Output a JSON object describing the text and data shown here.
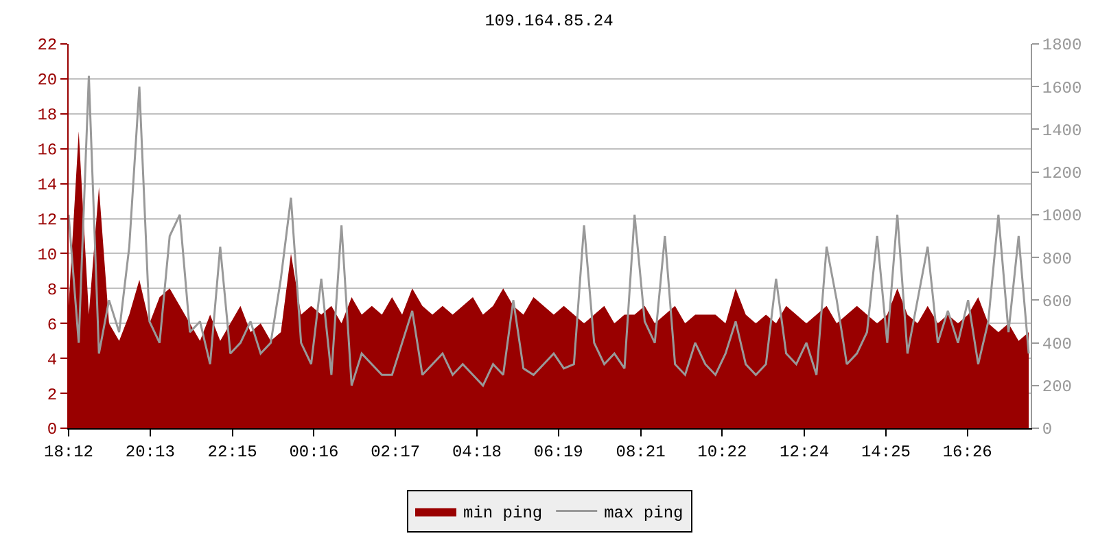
{
  "chart_data": {
    "type": "area",
    "title": "109.164.85.24",
    "x": [
      "--01-01T18:12",
      "--01-01T18:27",
      "--01-01T18:42",
      "--01-01T18:57",
      "--01-01T19:12",
      "--01-01T19:27",
      "--01-01T19:42",
      "--01-01T19:57",
      "--01-01T20:12",
      "--01-01T20:27",
      "--01-01T20:42",
      "--01-01T20:57",
      "--01-01T21:12",
      "--01-01T21:27",
      "--01-01T21:42",
      "--01-01T21:57",
      "--01-01T22:12",
      "--01-01T22:27",
      "--01-01T22:42",
      "--01-01T22:57",
      "--01-01T23:12",
      "--01-01T23:27",
      "--01-01T23:42",
      "--01-01T23:57",
      "--01-02T00:12",
      "--01-02T00:27",
      "--01-02T00:42",
      "--01-02T00:57",
      "--01-02T01:12",
      "--01-02T01:27",
      "--01-02T01:42",
      "--01-02T01:57",
      "--01-02T02:12",
      "--01-02T02:27",
      "--01-02T02:42",
      "--01-02T02:57",
      "--01-02T03:12",
      "--01-02T03:27",
      "--01-02T03:42",
      "--01-02T03:57",
      "--01-02T04:12",
      "--01-02T04:27",
      "--01-02T04:42",
      "--01-02T04:57",
      "--01-02T05:12",
      "--01-02T05:27",
      "--01-02T05:42",
      "--01-02T05:57",
      "--01-02T06:12",
      "--01-02T06:27",
      "--01-02T06:42",
      "--01-02T06:57",
      "--01-02T07:12",
      "--01-02T07:27",
      "--01-02T07:42",
      "--01-02T07:57",
      "--01-02T08:12",
      "--01-02T08:27",
      "--01-02T08:42",
      "--01-02T08:57",
      "--01-02T09:12",
      "--01-02T09:27",
      "--01-02T09:42",
      "--01-02T09:57",
      "--01-02T10:12",
      "--01-02T10:27",
      "--01-02T10:42",
      "--01-02T10:57",
      "--01-02T11:12",
      "--01-02T11:27",
      "--01-02T11:42",
      "--01-02T11:57",
      "--01-02T12:12",
      "--01-02T12:27",
      "--01-02T12:42",
      "--01-02T12:57",
      "--01-02T13:12",
      "--01-02T13:27",
      "--01-02T13:42",
      "--01-02T13:57",
      "--01-02T14:12",
      "--01-02T14:27",
      "--01-02T14:42",
      "--01-02T14:57",
      "--01-02T15:12",
      "--01-02T15:27",
      "--01-02T15:42",
      "--01-02T15:57",
      "--01-02T16:12",
      "--01-02T16:27",
      "--01-02T16:42",
      "--01-02T16:57",
      "--01-02T17:12",
      "--01-02T17:27",
      "--01-02T17:42",
      "--01-02T17:57"
    ],
    "series": [
      {
        "name": "min ping",
        "color": "#990000",
        "values": [
          7,
          17,
          6.5,
          13.8,
          6,
          5,
          6.5,
          8.5,
          6,
          7.5,
          8,
          7,
          6,
          5,
          6.5,
          5,
          6,
          7,
          5.5,
          6,
          5,
          5.5,
          10,
          6.5,
          7,
          6.5,
          7,
          6,
          7.5,
          6.5,
          7,
          6.5,
          7.5,
          6.5,
          8,
          7,
          6.5,
          7,
          6.5,
          7,
          7.5,
          6.5,
          7,
          8,
          7,
          6.5,
          7.5,
          7,
          6.5,
          7,
          6.5,
          6,
          6.5,
          7,
          6,
          6.5,
          6.5,
          7,
          6,
          6.5,
          7,
          6,
          6.5,
          6.5,
          6.5,
          6,
          8,
          6.5,
          6,
          6.5,
          6,
          7,
          6.5,
          6,
          6.5,
          7,
          6,
          6.5,
          7,
          6.5,
          6,
          6.5,
          8,
          6.5,
          6,
          7,
          6,
          6.5,
          6,
          6.5,
          7.5,
          6,
          5.5,
          6,
          5,
          5.5
        ]
      },
      {
        "name": "max ping",
        "type": "line",
        "axis": "y2",
        "color": "#999999",
        "values": [
          1000,
          400,
          1650,
          350,
          600,
          450,
          850,
          1600,
          500,
          400,
          900,
          1000,
          450,
          500,
          300,
          850,
          350,
          400,
          500,
          350,
          400,
          700,
          1080,
          400,
          300,
          700,
          250,
          950,
          200,
          350,
          300,
          250,
          250,
          400,
          550,
          250,
          300,
          350,
          250,
          300,
          250,
          200,
          300,
          250,
          600,
          280,
          250,
          300,
          350,
          280,
          300,
          950,
          400,
          300,
          350,
          280,
          1000,
          500,
          400,
          900,
          300,
          250,
          400,
          300,
          250,
          350,
          500,
          300,
          250,
          300,
          700,
          350,
          300,
          400,
          250,
          850,
          600,
          300,
          350,
          450,
          900,
          400,
          1000,
          350,
          600,
          850,
          400,
          550,
          400,
          600,
          300,
          500,
          1000,
          450,
          900,
          350
        ]
      }
    ],
    "xlim": [
      "--01-01T18:12",
      "--01-02T18:00"
    ],
    "xticks": [
      {
        "value": "--01-01T18:12",
        "label": "18:12"
      },
      {
        "value": "--01-01T20:13",
        "label": "20:13"
      },
      {
        "value": "--01-01T22:15",
        "label": "22:15"
      },
      {
        "value": "--01-02T00:16",
        "label": "00:16"
      },
      {
        "value": "--01-02T02:17",
        "label": "02:17"
      },
      {
        "value": "--01-02T04:18",
        "label": "04:18"
      },
      {
        "value": "--01-02T06:19",
        "label": "06:19"
      },
      {
        "value": "--01-02T08:21",
        "label": "08:21"
      },
      {
        "value": "--01-02T10:22",
        "label": "10:22"
      },
      {
        "value": "--01-02T12:24",
        "label": "12:24"
      },
      {
        "value": "--01-02T14:25",
        "label": "14:25"
      },
      {
        "value": "--01-02T16:26",
        "label": "16:26"
      }
    ],
    "ylim": [
      0,
      22
    ],
    "yticks": [
      0,
      2,
      4,
      6,
      8,
      10,
      12,
      14,
      16,
      18,
      20,
      22
    ],
    "y2lim": [
      0,
      1800
    ],
    "y2ticks": [
      0,
      200,
      400,
      600,
      800,
      1000,
      1200,
      1400,
      1600,
      1800
    ],
    "grid": "y",
    "legend": "bottom"
  }
}
